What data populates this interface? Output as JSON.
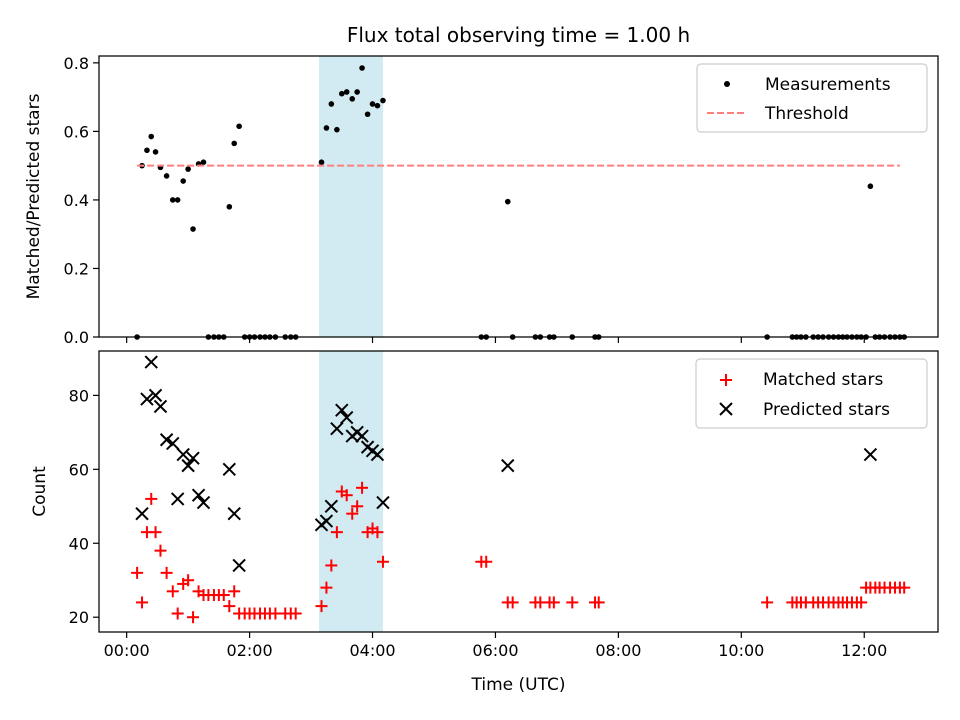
{
  "chart_data": [
    {
      "type": "scatter",
      "title": "Flux total observing time = 1.00 h",
      "xlabel": "",
      "ylabel": "Matched/Predicted stars",
      "xlim_hours": [
        -0.45,
        13.2
      ],
      "ylim": [
        0,
        0.82
      ],
      "x_ticks_hours": [
        0,
        2,
        4,
        6,
        8,
        10,
        12
      ],
      "y_ticks": [
        0.0,
        0.2,
        0.4,
        0.6,
        0.8
      ],
      "y_tick_labels": [
        "0.0",
        "0.2",
        "0.4",
        "0.6",
        "0.8"
      ],
      "highlight_span_hours": [
        3.13,
        4.17
      ],
      "highlight_color": "#add8e6",
      "legend": {
        "location": "top-right",
        "entries": [
          "Measurements",
          "Threshold"
        ]
      },
      "series": [
        {
          "name": "Measurements",
          "marker": "dot",
          "color": "#000000",
          "x_hours": [
            0.17,
            0.25,
            0.33,
            0.4,
            0.47,
            0.55,
            0.65,
            0.75,
            0.83,
            0.92,
            1.0,
            1.08,
            1.17,
            1.25,
            1.33,
            1.42,
            1.5,
            1.58,
            1.67,
            1.75,
            1.83,
            1.92,
            2.0,
            2.08,
            2.17,
            2.25,
            2.33,
            2.42,
            2.58,
            2.67,
            2.75,
            3.17,
            3.25,
            3.33,
            3.42,
            3.5,
            3.58,
            3.67,
            3.75,
            3.83,
            3.92,
            4.0,
            4.08,
            4.17,
            5.77,
            5.85,
            6.2,
            6.28,
            6.65,
            6.73,
            6.88,
            6.95,
            7.25,
            7.62,
            7.68,
            10.42,
            10.83,
            10.9,
            10.97,
            11.05,
            11.17,
            11.25,
            11.33,
            11.42,
            11.5,
            11.58,
            11.65,
            11.72,
            11.8,
            11.88,
            11.95,
            12.03,
            12.1,
            12.18,
            12.25,
            12.33,
            12.42,
            12.5,
            12.58,
            12.65
          ],
          "values": [
            0.0,
            0.5,
            0.545,
            0.585,
            0.54,
            0.495,
            0.47,
            0.4,
            0.4,
            0.455,
            0.49,
            0.315,
            0.505,
            0.51,
            0.0,
            0.0,
            0.0,
            0.0,
            0.38,
            0.565,
            0.615,
            0.0,
            0.0,
            0.0,
            0.0,
            0.0,
            0.0,
            0.0,
            0.0,
            0.0,
            0.0,
            0.51,
            0.61,
            0.68,
            0.605,
            0.71,
            0.715,
            0.695,
            0.715,
            0.785,
            0.65,
            0.68,
            0.675,
            0.69,
            0.0,
            0.0,
            0.395,
            0.0,
            0.0,
            0.0,
            0.0,
            0.0,
            0.0,
            0.0,
            0.0,
            0.0,
            0.0,
            0.0,
            0.0,
            0.0,
            0.0,
            0.0,
            0.0,
            0.0,
            0.0,
            0.0,
            0.0,
            0.0,
            0.0,
            0.0,
            0.0,
            0.0,
            0.44,
            0.0,
            0.0,
            0.0,
            0.0,
            0.0,
            0.0,
            0.0
          ]
        },
        {
          "name": "Threshold",
          "style": "dashed",
          "color": "#ff7f7f",
          "x_hours": [
            0.17,
            12.58
          ],
          "values": [
            0.5,
            0.5
          ]
        }
      ]
    },
    {
      "type": "scatter",
      "title": "",
      "xlabel": "Time (UTC)",
      "ylabel": "Count",
      "xlim_hours": [
        -0.45,
        13.2
      ],
      "ylim": [
        16,
        92
      ],
      "x_ticks_hours": [
        0,
        2,
        4,
        6,
        8,
        10,
        12
      ],
      "x_tick_labels": [
        "00:00",
        "02:00",
        "04:00",
        "06:00",
        "08:00",
        "10:00",
        "12:00"
      ],
      "y_ticks": [
        20,
        40,
        60,
        80
      ],
      "y_tick_labels": [
        "20",
        "40",
        "60",
        "80"
      ],
      "highlight_span_hours": [
        3.13,
        4.17
      ],
      "highlight_color": "#add8e6",
      "legend": {
        "location": "top-right",
        "entries": [
          "Matched stars",
          "Predicted stars"
        ]
      },
      "series": [
        {
          "name": "Matched stars",
          "marker": "plus",
          "color": "#ff0000",
          "x_hours": [
            0.17,
            0.25,
            0.33,
            0.4,
            0.47,
            0.55,
            0.65,
            0.75,
            0.83,
            0.92,
            1.0,
            1.08,
            1.17,
            1.25,
            1.33,
            1.42,
            1.5,
            1.58,
            1.67,
            1.75,
            1.83,
            1.92,
            2.0,
            2.08,
            2.17,
            2.25,
            2.33,
            2.42,
            2.58,
            2.67,
            2.75,
            3.17,
            3.25,
            3.33,
            3.42,
            3.5,
            3.58,
            3.67,
            3.75,
            3.83,
            3.92,
            4.0,
            4.08,
            4.17,
            5.77,
            5.85,
            6.2,
            6.28,
            6.65,
            6.73,
            6.88,
            6.95,
            7.25,
            7.62,
            7.68,
            10.42,
            10.83,
            10.9,
            10.97,
            11.05,
            11.17,
            11.25,
            11.33,
            11.42,
            11.5,
            11.58,
            11.65,
            11.72,
            11.8,
            11.88,
            11.95,
            12.03,
            12.1,
            12.18,
            12.25,
            12.33,
            12.42,
            12.5,
            12.58,
            12.65
          ],
          "values": [
            32,
            24,
            43,
            52,
            43,
            38,
            32,
            27,
            21,
            29,
            30,
            20,
            27,
            26,
            26,
            26,
            26,
            26,
            23,
            27,
            21,
            21,
            21,
            21,
            21,
            21,
            21,
            21,
            21,
            21,
            21,
            23,
            28,
            34,
            43,
            54,
            53,
            48,
            50,
            55,
            43,
            44,
            43,
            35,
            35,
            35,
            24,
            24,
            24,
            24,
            24,
            24,
            24,
            24,
            24,
            24,
            24,
            24,
            24,
            24,
            24,
            24,
            24,
            24,
            24,
            24,
            24,
            24,
            24,
            24,
            24,
            28,
            28,
            28,
            28,
            28,
            28,
            28,
            28,
            28
          ]
        },
        {
          "name": "Predicted stars",
          "marker": "x",
          "color": "#000000",
          "x_hours": [
            0.25,
            0.33,
            0.4,
            0.47,
            0.55,
            0.65,
            0.75,
            0.83,
            0.92,
            1.0,
            1.08,
            1.17,
            1.25,
            1.67,
            1.75,
            1.83,
            3.17,
            3.25,
            3.33,
            3.42,
            3.5,
            3.58,
            3.67,
            3.75,
            3.83,
            3.92,
            4.0,
            4.08,
            4.17,
            6.2,
            12.1
          ],
          "values": [
            48,
            79,
            89,
            80,
            77,
            68,
            67,
            52,
            64,
            61,
            63,
            53,
            51,
            60,
            48,
            34,
            45,
            46,
            50,
            71,
            76,
            74,
            69,
            70,
            69,
            66,
            65,
            64,
            51,
            61,
            64
          ]
        }
      ]
    }
  ]
}
